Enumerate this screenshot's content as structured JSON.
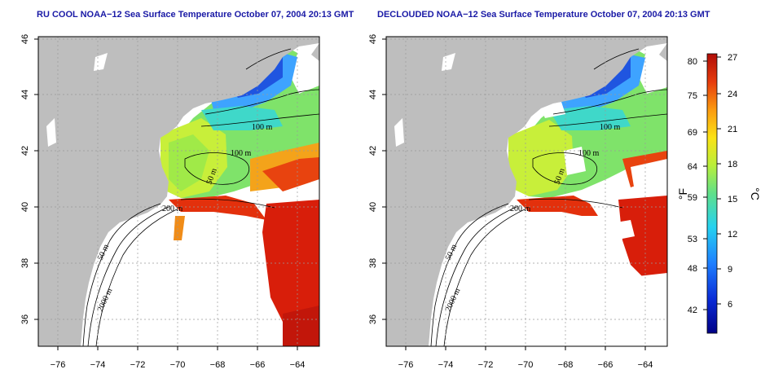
{
  "panels": [
    {
      "title": "RU COOL NOAA−12 Sea Surface Temperature October 07, 2004 20:13 GMT",
      "contours": [
        "100 m",
        "100 m",
        "50 m",
        "200 m",
        "50 m",
        "2000 m"
      ]
    },
    {
      "title": "DECLOUDED NOAA−12 Sea Surface Temperature October 07, 2004 20:13 GMT",
      "contours": [
        "100 m",
        "100 m",
        "50 m",
        "200 m",
        "50 m",
        "2000 m"
      ]
    }
  ],
  "axes": {
    "longitude_ticks": [
      "−76",
      "−74",
      "−72",
      "−70",
      "−68",
      "−66",
      "−64"
    ],
    "latitude_ticks": [
      "46",
      "44",
      "42",
      "40",
      "38",
      "36"
    ]
  },
  "colorbar": {
    "fahrenheit_label": "°F",
    "celsius_label": "°C",
    "fahrenheit_ticks": [
      "80",
      "75",
      "69",
      "64",
      "59",
      "53",
      "48",
      "42"
    ],
    "celsius_ticks": [
      "27",
      "24",
      "21",
      "18",
      "15",
      "12",
      "9",
      "6"
    ]
  },
  "colors": {
    "land": "#bebebe",
    "ocean": "#ffffff",
    "title": "#1a1aa6",
    "cold": "#1f3fd9",
    "warm": "#d81e0a"
  }
}
